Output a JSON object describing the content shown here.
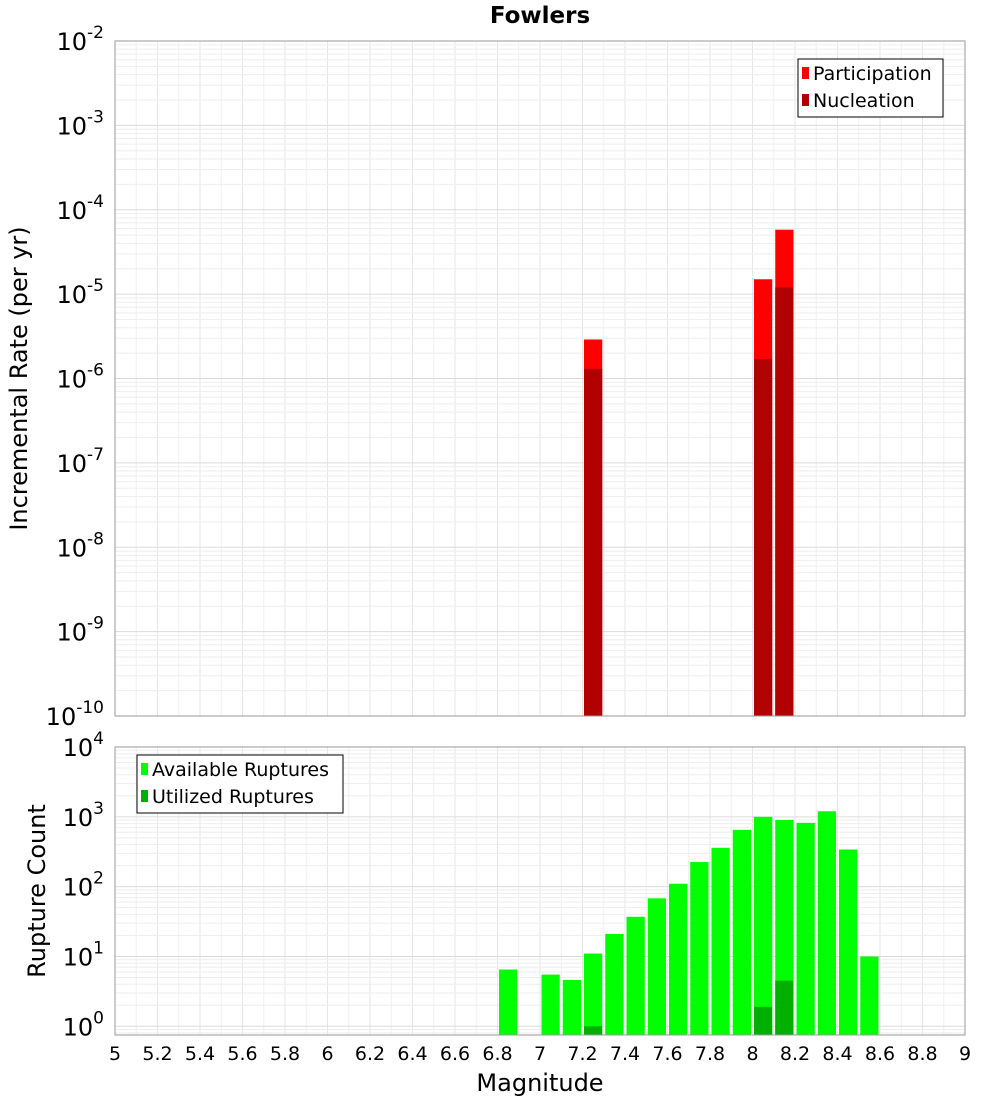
{
  "chart_data": [
    {
      "type": "bar",
      "title": "Fowlers",
      "ylabel": "Incremental Rate (per yr)",
      "xlabel": "",
      "xlim": [
        5,
        9
      ],
      "ylim": [
        1e-10,
        0.01
      ],
      "yscale": "log",
      "bin_width": 0.1,
      "grid": true,
      "legend_position": "top-right",
      "ytick_exponents": [
        "-10",
        "-9",
        "-8",
        "-7",
        "-6",
        "-5",
        "-4",
        "-3",
        "-2"
      ],
      "ytick_base": "10",
      "series": [
        {
          "name": "Participation",
          "color": "#ff0000",
          "x": [
            7.25,
            8.05,
            8.15
          ],
          "values": [
            2.9e-06,
            1.5e-05,
            5.8e-05
          ]
        },
        {
          "name": "Nucleation",
          "color": "#b00000",
          "x": [
            7.25,
            8.05,
            8.15
          ],
          "values": [
            1.3e-06,
            1.7e-06,
            1.2e-05
          ]
        }
      ]
    },
    {
      "type": "bar",
      "title": "",
      "ylabel": "Rupture Count",
      "xlabel": "Magnitude",
      "xlim": [
        5,
        9
      ],
      "ylim": [
        0.75,
        10000
      ],
      "yscale": "log",
      "bin_width": 0.1,
      "grid": true,
      "legend_position": "top-left",
      "ytick_exponents": [
        "0",
        "1",
        "2",
        "3",
        "4"
      ],
      "ytick_base": "10",
      "xtick_labels": [
        "5",
        "5.2",
        "5.4",
        "5.6",
        "5.8",
        "6",
        "6.2",
        "6.4",
        "6.6",
        "6.8",
        "7",
        "7.2",
        "7.4",
        "7.6",
        "7.8",
        "8",
        "8.2",
        "8.4",
        "8.6",
        "8.8",
        "9"
      ],
      "series": [
        {
          "name": "Available Ruptures",
          "color": "#00ff00",
          "x": [
            6.85,
            7.05,
            7.15,
            7.25,
            7.35,
            7.45,
            7.55,
            7.65,
            7.75,
            7.85,
            7.95,
            8.05,
            8.15,
            8.25,
            8.35,
            8.45,
            8.55
          ],
          "values": [
            6.5,
            5.5,
            4.6,
            11,
            21,
            37,
            68,
            110,
            225,
            360,
            650,
            1000,
            900,
            820,
            1200,
            340,
            10
          ]
        },
        {
          "name": "Utilized Ruptures",
          "color": "#00b000",
          "x": [
            7.25,
            8.05,
            8.15
          ],
          "values": [
            1,
            1.9,
            4.5
          ]
        }
      ]
    }
  ]
}
